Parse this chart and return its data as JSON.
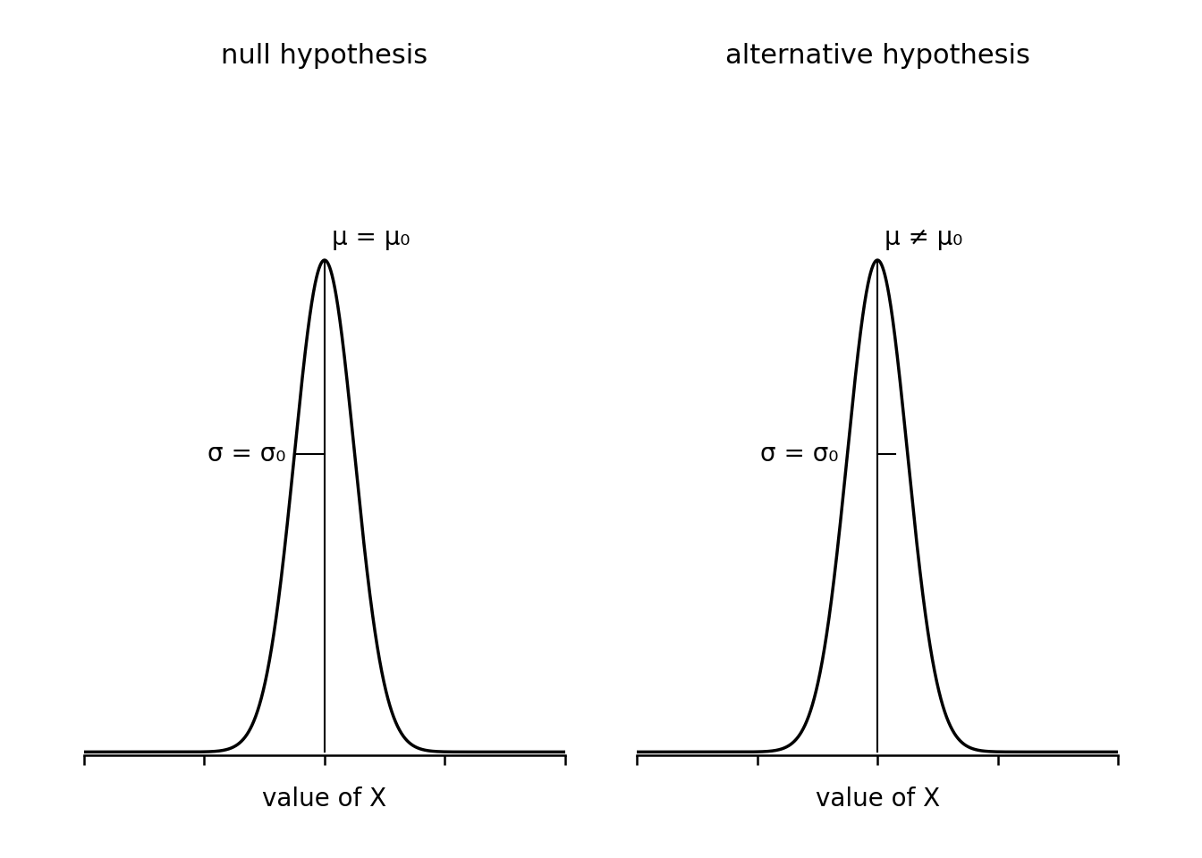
{
  "title_left": "null hypothesis",
  "title_right": "alternative hypothesis",
  "xlabel": "value of X",
  "mu_label_left": "μ = μ₀",
  "mu_label_right": "μ ≠ μ₀",
  "sigma_label_left": "σ = σ₀",
  "sigma_label_right": "σ = σ₀",
  "background_color": "#ffffff",
  "curve_color": "#000000",
  "line_color": "#000000",
  "title_fontsize": 22,
  "label_fontsize": 20,
  "xlabel_fontsize": 20,
  "mu": 0,
  "sigma": 0.5,
  "x_range": [
    -4,
    4
  ],
  "tick_count": 5
}
